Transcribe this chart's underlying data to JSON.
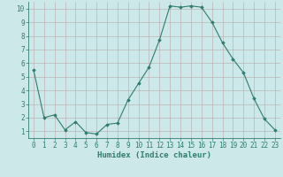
{
  "x": [
    0,
    1,
    2,
    3,
    4,
    5,
    6,
    7,
    8,
    9,
    10,
    11,
    12,
    13,
    14,
    15,
    16,
    17,
    18,
    19,
    20,
    21,
    22,
    23
  ],
  "y": [
    5.5,
    2.0,
    2.2,
    1.1,
    1.7,
    0.9,
    0.8,
    1.5,
    1.6,
    3.3,
    4.5,
    5.7,
    7.7,
    10.2,
    10.1,
    10.2,
    10.1,
    9.0,
    7.5,
    6.3,
    5.3,
    3.4,
    1.9,
    1.1
  ],
  "line_color": "#2e7d6e",
  "marker": "D",
  "marker_size": 1.8,
  "bg_color": "#cde8e8",
  "grid_color": "#b8a8a8",
  "xlabel": "Humidex (Indice chaleur)",
  "xlabel_fontsize": 6.5,
  "tick_fontsize": 5.5,
  "ylabel_ticks": [
    1,
    2,
    3,
    4,
    5,
    6,
    7,
    8,
    9,
    10
  ],
  "xlim": [
    -0.5,
    23.5
  ],
  "ylim": [
    0.5,
    10.5
  ]
}
